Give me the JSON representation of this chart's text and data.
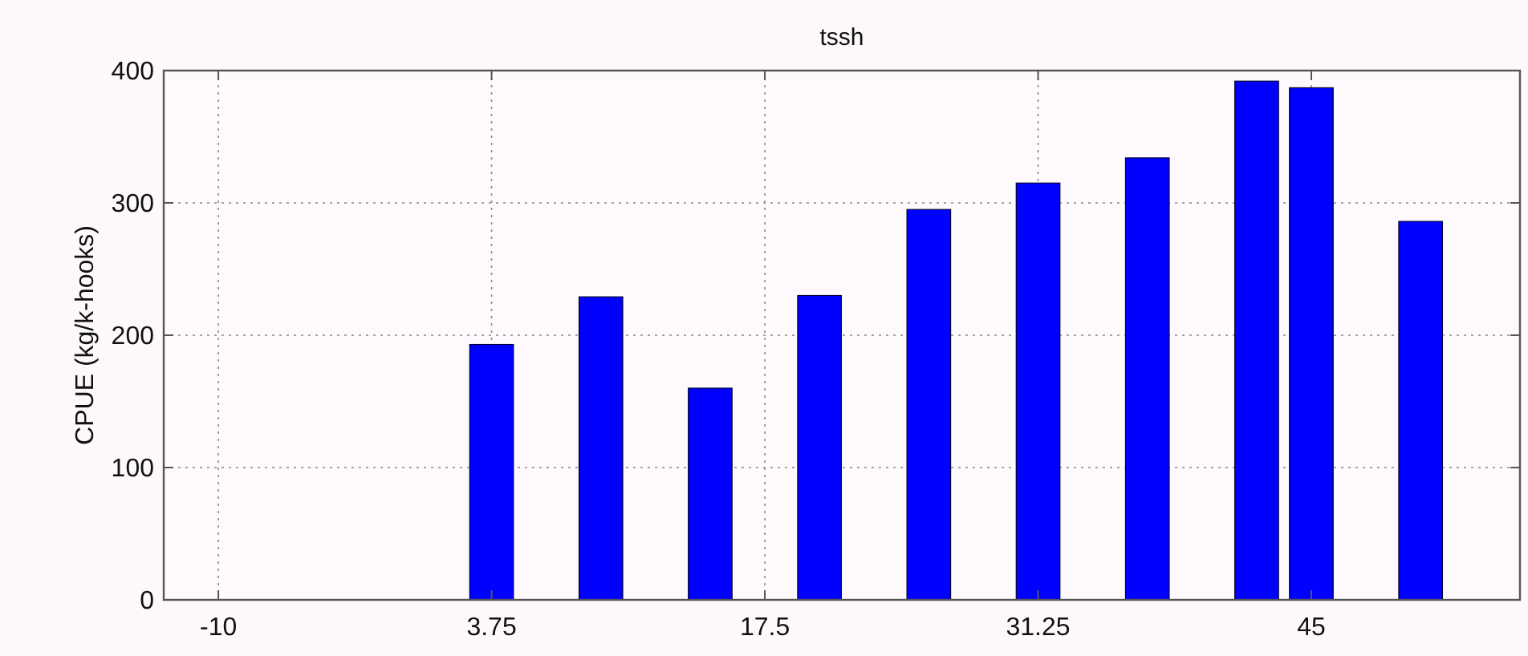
{
  "chart_data": {
    "type": "bar",
    "title": "tssh",
    "ylabel": "CPUE (kg/k-hooks)",
    "x": [
      3.75,
      9.25,
      14.75,
      20.25,
      25.75,
      31.25,
      36.75,
      42.25,
      45,
      50.5
    ],
    "values": [
      193,
      229,
      160,
      230,
      295,
      315,
      334,
      392,
      387,
      286
    ],
    "color": "#0000ff",
    "xlim": [
      -12.75,
      55.5
    ],
    "xticks": [
      -10,
      3.75,
      17.5,
      31.25,
      45
    ],
    "ylim": [
      0,
      400
    ],
    "yticks": [
      0,
      100,
      200,
      300,
      400
    ],
    "grid": true
  }
}
